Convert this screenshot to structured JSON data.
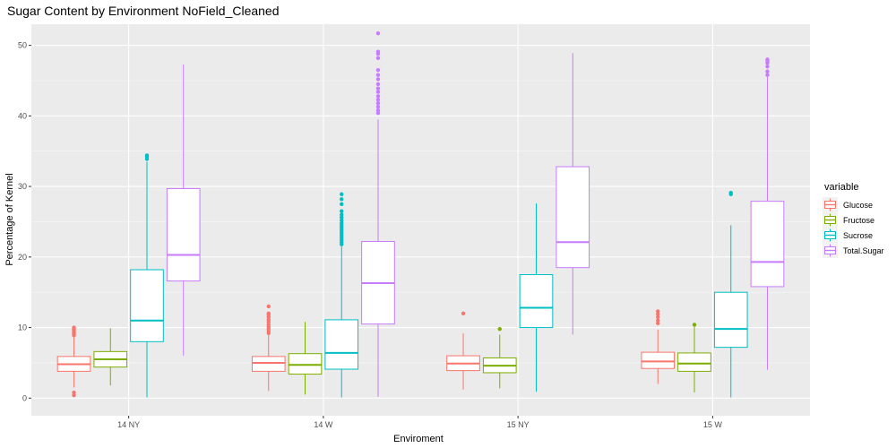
{
  "chart_data": {
    "type": "boxplot",
    "title": "Sugar Content by Environment NoField_Cleaned",
    "xlabel": "Enviroment",
    "ylabel": "Percentage of Kernel",
    "categories": [
      "14 NY",
      "14 W",
      "15 NY",
      "15 W"
    ],
    "ylim": [
      -2.5,
      53
    ],
    "yticks": [
      0,
      10,
      20,
      30,
      40,
      50
    ],
    "grid": true,
    "legend": {
      "title": "variable",
      "position": "right"
    },
    "series": [
      {
        "name": "Glucose",
        "color": "#F8766D",
        "boxes": [
          {
            "min": 1.5,
            "q1": 3.8,
            "median": 4.8,
            "q3": 5.9,
            "max": 8.9,
            "outliers": [
              0.4,
              0.8,
              8.9,
              9.1,
              9.3,
              9.5,
              9.7,
              9.8,
              10.0
            ]
          },
          {
            "min": 1.0,
            "q1": 3.8,
            "median": 5.0,
            "q3": 5.9,
            "max": 9.0,
            "outliers": [
              9.2,
              9.5,
              9.8,
              10.1,
              10.4,
              10.8,
              11.1,
              11.5,
              11.8,
              12.0,
              13.0
            ]
          },
          {
            "min": 1.2,
            "q1": 3.9,
            "median": 4.9,
            "q3": 6.0,
            "max": 9.2,
            "outliers": [
              12.0
            ]
          },
          {
            "min": 2.0,
            "q1": 4.2,
            "median": 5.2,
            "q3": 6.5,
            "max": 9.7,
            "outliers": [
              10.6,
              11.0,
              11.5,
              11.9,
              12.3
            ]
          }
        ]
      },
      {
        "name": "Fructose",
        "color": "#7CAE00",
        "boxes": [
          {
            "min": 1.8,
            "q1": 4.4,
            "median": 5.5,
            "q3": 6.6,
            "max": 9.9,
            "outliers": []
          },
          {
            "min": 0.5,
            "q1": 3.4,
            "median": 4.7,
            "q3": 6.3,
            "max": 10.8,
            "outliers": []
          },
          {
            "min": 1.4,
            "q1": 3.6,
            "median": 4.6,
            "q3": 5.7,
            "max": 9.0,
            "outliers": [
              9.8
            ]
          },
          {
            "min": 0.8,
            "q1": 3.8,
            "median": 4.9,
            "q3": 6.4,
            "max": 10.1,
            "outliers": [
              10.4
            ]
          }
        ]
      },
      {
        "name": "Sucrose",
        "color": "#00BFC4",
        "boxes": [
          {
            "min": 0.1,
            "q1": 8.0,
            "median": 11.0,
            "q3": 18.2,
            "max": 33.5,
            "outliers": [
              33.9,
              34.2,
              34.4
            ]
          },
          {
            "min": 0.1,
            "q1": 4.1,
            "median": 6.4,
            "q3": 11.1,
            "max": 21.5,
            "outliers": [
              21.8,
              22.1,
              22.4,
              22.7,
              23.0,
              23.3,
              23.6,
              23.9,
              24.2,
              24.5,
              24.8,
              25.2,
              25.6,
              26.0,
              26.5,
              27.5,
              28.2,
              28.9
            ]
          },
          {
            "min": 0.9,
            "q1": 10.0,
            "median": 12.8,
            "q3": 17.5,
            "max": 27.6,
            "outliers": []
          },
          {
            "min": 0.1,
            "q1": 7.2,
            "median": 9.8,
            "q3": 15.0,
            "max": 24.5,
            "outliers": [
              28.9,
              29.1
            ]
          }
        ]
      },
      {
        "name": "Total.Sugar",
        "color": "#C77CFF",
        "boxes": [
          {
            "min": 6.0,
            "q1": 16.6,
            "median": 20.3,
            "q3": 29.7,
            "max": 47.3,
            "outliers": []
          },
          {
            "min": 0.2,
            "q1": 10.5,
            "median": 16.3,
            "q3": 22.2,
            "max": 39.5,
            "outliers": [
              40.4,
              40.8,
              41.3,
              41.8,
              42.3,
              42.8,
              43.4,
              43.9,
              44.5,
              45.2,
              45.8,
              46.5,
              48.2,
              48.8,
              49.1,
              51.7
            ]
          },
          {
            "min": 9.0,
            "q1": 18.5,
            "median": 22.1,
            "q3": 32.8,
            "max": 48.9,
            "outliers": []
          },
          {
            "min": 4.0,
            "q1": 15.8,
            "median": 19.3,
            "q3": 27.9,
            "max": 45.5,
            "outliers": [
              45.8,
              46.3,
              47.0,
              47.5,
              47.8,
              48.0
            ]
          }
        ]
      }
    ]
  }
}
